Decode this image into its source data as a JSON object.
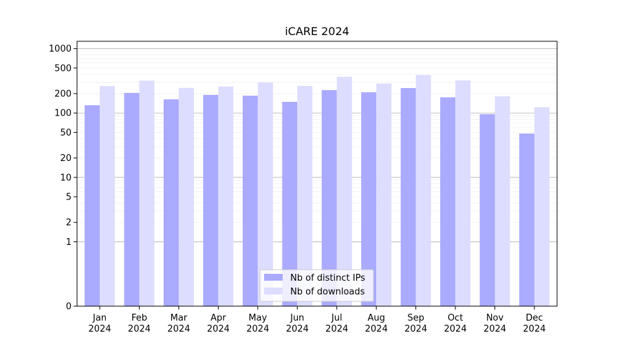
{
  "chart_data": {
    "type": "bar",
    "title": "iCARE 2024",
    "xlabel": "",
    "ylabel": "",
    "y_scale": "symlog",
    "ylim": [
      0,
      1300
    ],
    "y_ticks": [
      0,
      1,
      2,
      5,
      10,
      20,
      50,
      100,
      200,
      500,
      1000
    ],
    "grid": true,
    "legend_position": "bottom-center",
    "categories": [
      [
        "Jan",
        "2024"
      ],
      [
        "Feb",
        "2024"
      ],
      [
        "Mar",
        "2024"
      ],
      [
        "Apr",
        "2024"
      ],
      [
        "May",
        "2024"
      ],
      [
        "Jun",
        "2024"
      ],
      [
        "Jul",
        "2024"
      ],
      [
        "Aug",
        "2024"
      ],
      [
        "Sep",
        "2024"
      ],
      [
        "Oct",
        "2024"
      ],
      [
        "Nov",
        "2024"
      ],
      [
        "Dec",
        "2024"
      ]
    ],
    "series": [
      {
        "name": "Nb of distinct IPs",
        "color": "#aaaaff",
        "values": [
          132,
          205,
          163,
          191,
          186,
          149,
          227,
          210,
          244,
          175,
          96,
          48
        ]
      },
      {
        "name": "Nb of downloads",
        "color": "#ddddff",
        "values": [
          262,
          318,
          246,
          258,
          298,
          263,
          366,
          287,
          389,
          320,
          182,
          123
        ]
      }
    ]
  }
}
